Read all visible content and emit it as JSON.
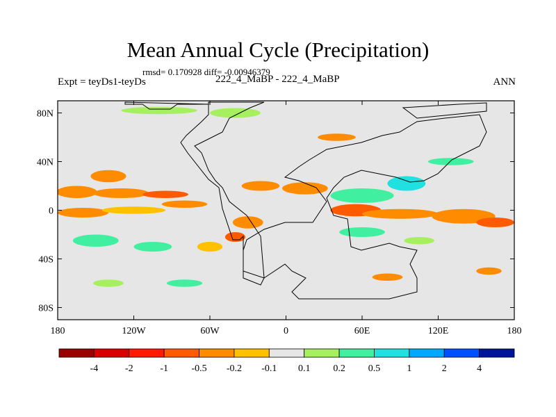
{
  "chart_data": {
    "type": "heatmap",
    "title": "Mean Annual Cycle (Precipitation)",
    "stats_line": "rmsd= 0.170928 diff= -0.00946379",
    "left_label": "Expt = teyDs1-teyDs",
    "center_label": "222_4_MaBP - 222_4_MaBP",
    "right_label": "ANN",
    "x_ticks": [
      "180",
      "120W",
      "60W",
      "0",
      "60E",
      "120E",
      "180"
    ],
    "x_tick_values": [
      -180,
      -120,
      -60,
      0,
      60,
      120,
      180
    ],
    "y_ticks": [
      "80N",
      "40N",
      "0",
      "40S",
      "80S"
    ],
    "y_tick_values": [
      80,
      40,
      0,
      -40,
      -80
    ],
    "xlim": [
      -180,
      180
    ],
    "ylim": [
      -90,
      90
    ],
    "colorbar": {
      "labels": [
        "-4",
        "-2",
        "-1",
        "-0.5",
        "-0.2",
        "-0.1",
        "0.1",
        "0.2",
        "0.5",
        "1",
        "2",
        "4"
      ],
      "colors": [
        "#9a0000",
        "#d80000",
        "#ff1a00",
        "#ff5a00",
        "#ff8c00",
        "#ffc000",
        "#e6e6e6",
        "#a6f060",
        "#40f0a0",
        "#20e0e0",
        "#00a8ff",
        "#0050ff",
        "#00149a"
      ]
    },
    "anomaly_regions": [
      {
        "lon": -165,
        "lat": 15,
        "rx": 16,
        "ry": 5,
        "level": 4
      },
      {
        "lon": -130,
        "lat": 14,
        "rx": 22,
        "ry": 4,
        "level": 4
      },
      {
        "lon": -95,
        "lat": 13,
        "rx": 18,
        "ry": 3,
        "level": 3
      },
      {
        "lon": -140,
        "lat": 28,
        "rx": 14,
        "ry": 5,
        "level": 4
      },
      {
        "lon": -160,
        "lat": -2,
        "rx": 20,
        "ry": 4,
        "level": 4
      },
      {
        "lon": -120,
        "lat": 0,
        "rx": 25,
        "ry": 3,
        "level": 5
      },
      {
        "lon": -80,
        "lat": 5,
        "rx": 18,
        "ry": 3,
        "level": 4
      },
      {
        "lon": -150,
        "lat": -25,
        "rx": 18,
        "ry": 5,
        "level": 8
      },
      {
        "lon": -105,
        "lat": -30,
        "rx": 15,
        "ry": 4,
        "level": 8
      },
      {
        "lon": -30,
        "lat": -10,
        "rx": 12,
        "ry": 5,
        "level": 4
      },
      {
        "lon": -40,
        "lat": -22,
        "rx": 8,
        "ry": 4,
        "level": 3
      },
      {
        "lon": -20,
        "lat": 20,
        "rx": 15,
        "ry": 4,
        "level": 4
      },
      {
        "lon": 15,
        "lat": 18,
        "rx": 18,
        "ry": 5,
        "level": 4
      },
      {
        "lon": 60,
        "lat": 12,
        "rx": 25,
        "ry": 6,
        "level": 8
      },
      {
        "lon": 95,
        "lat": 22,
        "rx": 15,
        "ry": 6,
        "level": 9
      },
      {
        "lon": 55,
        "lat": 0,
        "rx": 20,
        "ry": 5,
        "level": 3
      },
      {
        "lon": 90,
        "lat": -3,
        "rx": 30,
        "ry": 4,
        "level": 4
      },
      {
        "lon": 140,
        "lat": -5,
        "rx": 25,
        "ry": 6,
        "level": 4
      },
      {
        "lon": 165,
        "lat": -10,
        "rx": 15,
        "ry": 4,
        "level": 3
      },
      {
        "lon": 60,
        "lat": -18,
        "rx": 18,
        "ry": 4,
        "level": 8
      },
      {
        "lon": 105,
        "lat": -25,
        "rx": 12,
        "ry": 3,
        "level": 7
      },
      {
        "lon": 130,
        "lat": 40,
        "rx": 18,
        "ry": 3,
        "level": 8
      },
      {
        "lon": 40,
        "lat": 60,
        "rx": 15,
        "ry": 3,
        "level": 4
      },
      {
        "lon": -100,
        "lat": 82,
        "rx": 30,
        "ry": 3,
        "level": 7
      },
      {
        "lon": -40,
        "lat": 80,
        "rx": 20,
        "ry": 4,
        "level": 7
      },
      {
        "lon": 80,
        "lat": -55,
        "rx": 12,
        "ry": 3,
        "level": 4
      },
      {
        "lon": 160,
        "lat": -50,
        "rx": 10,
        "ry": 3,
        "level": 4
      },
      {
        "lon": -140,
        "lat": -60,
        "rx": 12,
        "ry": 3,
        "level": 7
      },
      {
        "lon": -60,
        "lat": -30,
        "rx": 10,
        "ry": 4,
        "level": 5
      },
      {
        "lon": -80,
        "lat": -60,
        "rx": 14,
        "ry": 3,
        "level": 8
      }
    ]
  }
}
